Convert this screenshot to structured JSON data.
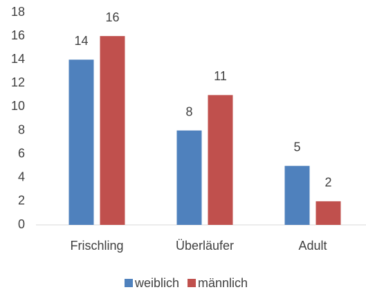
{
  "chart_data": {
    "type": "bar",
    "categories": [
      "Frischling",
      "Überläufer",
      "Adult"
    ],
    "series": [
      {
        "name": "weiblich",
        "color": "#4f81bd",
        "values": [
          14,
          8,
          5
        ]
      },
      {
        "name": "männlich",
        "color": "#c0504d",
        "values": [
          16,
          11,
          2
        ]
      }
    ],
    "ylim": [
      0,
      18
    ],
    "yticks": [
      0,
      2,
      4,
      6,
      8,
      10,
      12,
      14,
      16,
      18
    ],
    "grid": false,
    "legend": "bottom"
  }
}
